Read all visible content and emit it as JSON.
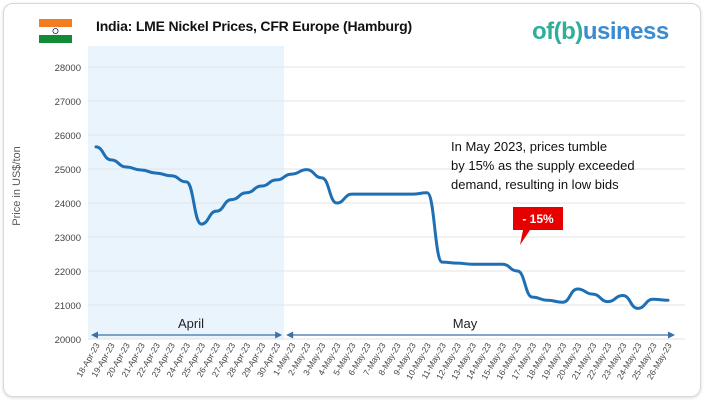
{
  "header": {
    "title": "India: LME Nickel Prices, CFR Europe (Hamburg)",
    "logo_text": "ofbusiness",
    "flag": "india-flag"
  },
  "colors": {
    "line": "#1f6fb4",
    "april_shade": "#eaf4fd",
    "callout": "#e60000",
    "grid": "#e3e3e3",
    "arrow": "#3d6fa8"
  },
  "chart_data": {
    "type": "line",
    "title": "India: LME Nickel Prices, CFR Europe (Hamburg)",
    "ylabel": "Price in US$/ton",
    "xlabel": "",
    "ylim": [
      20000,
      28000
    ],
    "yticks": [
      20000,
      21000,
      22000,
      23000,
      24000,
      25000,
      26000,
      27000,
      28000
    ],
    "grid": "horizontal",
    "x": [
      "18-Apr-23",
      "19-Apr-23",
      "20-Apr-23",
      "21-Apr-23",
      "22-Apr-23",
      "23-Apr-23",
      "24-Apr-23",
      "25-Apr-23",
      "26-Apr-23",
      "27-Apr-23",
      "28-Apr-23",
      "29-Apr-23",
      "30-Apr-23",
      "1-May-23",
      "2-May-23",
      "3-May-23",
      "4-May-23",
      "5-May-23",
      "6-May-23",
      "7-May-23",
      "8-May-23",
      "9-May-23",
      "10-May-23",
      "11-May-23",
      "12-May-23",
      "13-May-23",
      "14-May-23",
      "15-May-23",
      "16-May-23",
      "17-May-23",
      "18-May-23",
      "19-May-23",
      "20-May-23",
      "21-May-23",
      "22-May-23",
      "23-May-23",
      "24-May-23",
      "25-May-23",
      "26-May-23"
    ],
    "series": [
      {
        "values": [
          25650,
          25270,
          25060,
          24970,
          24880,
          24800,
          24620,
          23380,
          23760,
          24100,
          24300,
          24500,
          24680,
          24850,
          24980,
          24740,
          24000,
          24260,
          24260,
          24260,
          24260,
          24260,
          24300,
          22260,
          22230,
          22200,
          22200,
          22200,
          22000,
          21230,
          21140,
          21080,
          21470,
          21320,
          21100,
          21280,
          20900,
          21170,
          21140
        ]
      }
    ],
    "periods": [
      {
        "label": "April"
      },
      {
        "label": "May"
      }
    ],
    "annotation": "In May 2023, prices tumble by 15% as the supply exceeded demand, resulting in low bids",
    "annotation_lines": [
      "In May 2023, prices tumble",
      "by 15% as the supply exceeded",
      "demand, resulting in low bids"
    ],
    "callout": "- 15%"
  }
}
